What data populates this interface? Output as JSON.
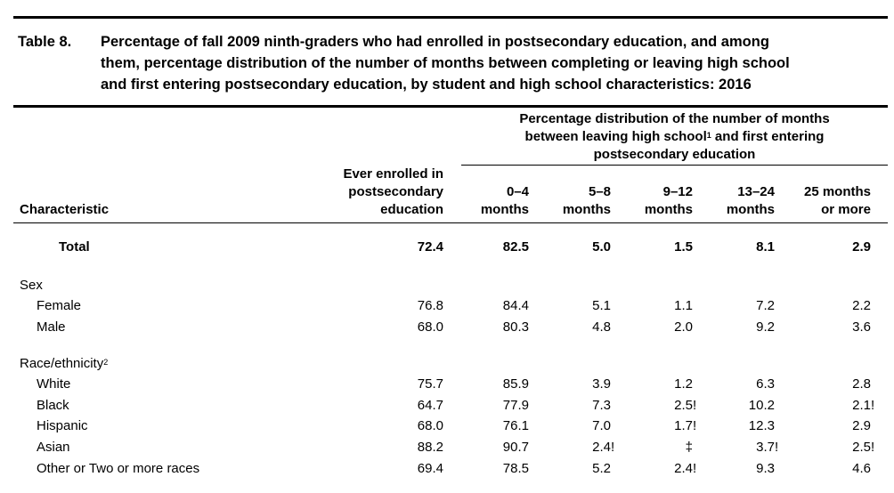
{
  "table": {
    "number": "Table 8.",
    "title_lines": [
      "Percentage of fall 2009 ninth-graders who had enrolled in postsecondary education, and among",
      "them, percentage distribution of the number of months between completing or leaving high school",
      "and first entering postsecondary education, by student and high school characteristics: 2016"
    ],
    "group_header": {
      "line1": "Percentage distribution of the number of months",
      "line2_pre": "between leaving high school",
      "line2_sup": "1",
      "line2_post": " and first entering",
      "line3": "postsecondary education"
    },
    "col_characteristic": "Characteristic",
    "col_ever": [
      "Ever enrolled in",
      "postsecondary",
      "education"
    ],
    "col_months": [
      [
        "0–4",
        "months"
      ],
      [
        "5–8",
        "months"
      ],
      [
        "9–12",
        "months"
      ],
      [
        "13–24",
        "months"
      ],
      [
        "25 months",
        "or more"
      ]
    ],
    "total": {
      "label": "Total",
      "values": [
        "72.4",
        "82.5",
        "5.0",
        "1.5",
        "8.1",
        "2.9"
      ]
    },
    "sections": [
      {
        "heading": "Sex",
        "heading_sup": "",
        "rows": [
          {
            "label": "Female",
            "values": [
              "76.8",
              "84.4",
              "5.1",
              "1.1",
              "7.2",
              "2.2"
            ],
            "flags": [
              "",
              "",
              "",
              "",
              "",
              ""
            ]
          },
          {
            "label": "Male",
            "values": [
              "68.0",
              "80.3",
              "4.8",
              "2.0",
              "9.2",
              "3.6"
            ],
            "flags": [
              "",
              "",
              "",
              "",
              "",
              ""
            ]
          }
        ]
      },
      {
        "heading": "Race/ethnicity",
        "heading_sup": "2",
        "rows": [
          {
            "label": "White",
            "values": [
              "75.7",
              "85.9",
              "3.9",
              "1.2",
              "6.3",
              "2.8"
            ],
            "flags": [
              "",
              "",
              "",
              "",
              "",
              ""
            ]
          },
          {
            "label": "Black",
            "values": [
              "64.7",
              "77.9",
              "7.3",
              "2.5",
              "10.2",
              "2.1"
            ],
            "flags": [
              "",
              "",
              "",
              "!",
              "",
              "!"
            ]
          },
          {
            "label": "Hispanic",
            "values": [
              "68.0",
              "76.1",
              "7.0",
              "1.7",
              "12.3",
              "2.9"
            ],
            "flags": [
              "",
              "",
              "",
              "!",
              "",
              ""
            ]
          },
          {
            "label": "Asian",
            "values": [
              "88.2",
              "90.7",
              "2.4",
              "‡",
              "3.7",
              "2.5"
            ],
            "flags": [
              "",
              "",
              "!",
              "",
              "!",
              "!"
            ]
          },
          {
            "label": "Other or Two or more races",
            "values": [
              "69.4",
              "78.5",
              "5.2",
              "2.4",
              "9.3",
              "4.6"
            ],
            "flags": [
              "",
              "",
              "",
              "!",
              "",
              ""
            ]
          }
        ]
      }
    ]
  }
}
